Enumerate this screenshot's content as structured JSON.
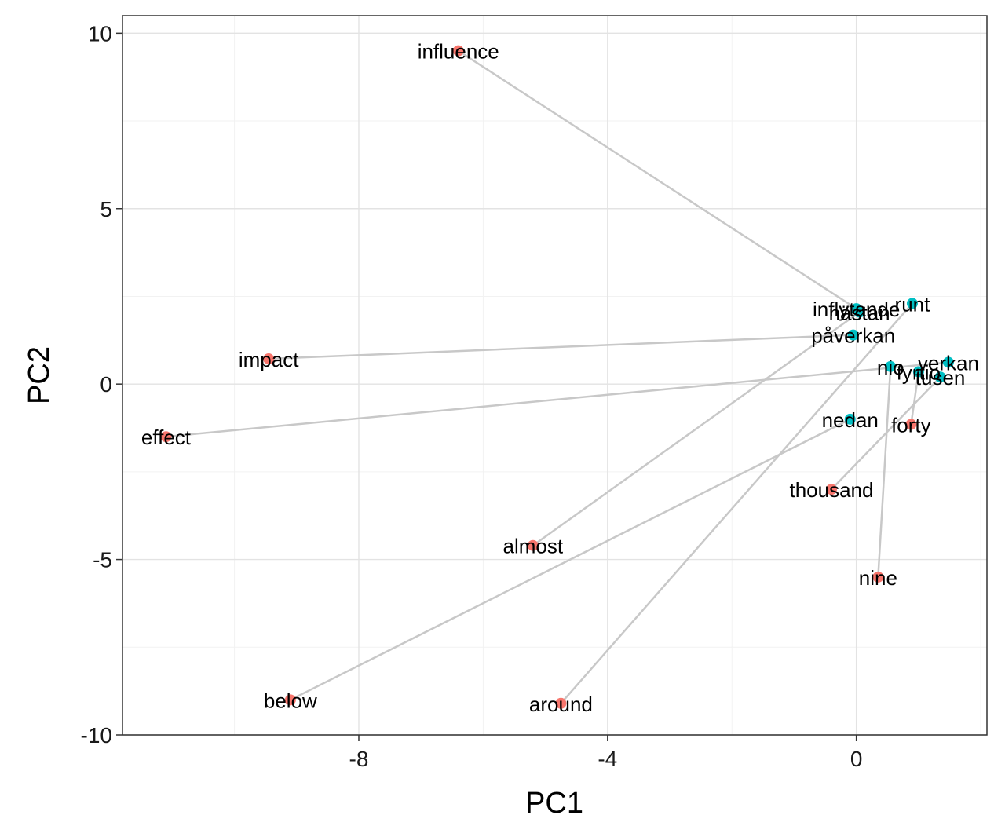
{
  "chart_data": {
    "type": "scatter",
    "title": "",
    "xlabel": "PC1",
    "ylabel": "PC2",
    "xlim": [
      -11.8,
      2.1
    ],
    "ylim": [
      -10,
      10.5
    ],
    "x_ticks": [
      -8,
      -4,
      0
    ],
    "x_tick_labels": [
      "-8",
      "-4",
      "0"
    ],
    "y_ticks": [
      -10,
      -5,
      0,
      5,
      10
    ],
    "y_tick_labels": [
      "-10",
      "-5",
      "0",
      "5",
      "10"
    ],
    "grid": true,
    "legend": "none",
    "colors": {
      "english": "#f8766d",
      "swedish": "#00bfc4",
      "link": "#c8c8c8"
    },
    "english_points": [
      {
        "label": "influence",
        "x": -6.4,
        "y": 9.5
      },
      {
        "label": "impact",
        "x": -9.45,
        "y": 0.72
      },
      {
        "label": "effect",
        "x": -11.1,
        "y": -1.5
      },
      {
        "label": "almost",
        "x": -5.2,
        "y": -4.6
      },
      {
        "label": "below",
        "x": -9.1,
        "y": -9.0
      },
      {
        "label": "around",
        "x": -4.75,
        "y": -9.1
      },
      {
        "label": "thousand",
        "x": -0.4,
        "y": -3.0
      },
      {
        "label": "nine",
        "x": 0.35,
        "y": -5.5
      },
      {
        "label": "forty",
        "x": 0.88,
        "y": -1.15
      }
    ],
    "swedish_points": [
      {
        "label": "inflytande",
        "x": 0.0,
        "y": 2.15
      },
      {
        "label": "nästan",
        "x": 0.05,
        "y": 2.05
      },
      {
        "label": "runt",
        "x": 0.9,
        "y": 2.3
      },
      {
        "label": "påverkan",
        "x": -0.05,
        "y": 1.4
      },
      {
        "label": "verkan",
        "x": 1.48,
        "y": 0.62
      },
      {
        "label": "nio",
        "x": 0.55,
        "y": 0.5
      },
      {
        "label": "fyrtio",
        "x": 1.0,
        "y": 0.35
      },
      {
        "label": "tusen",
        "x": 1.35,
        "y": 0.2
      },
      {
        "label": "nedan",
        "x": -0.1,
        "y": -1.0
      }
    ],
    "links": [
      {
        "from": "influence",
        "to": "inflytande"
      },
      {
        "from": "impact",
        "to": "påverkan"
      },
      {
        "from": "effect",
        "to": "verkan"
      },
      {
        "from": "almost",
        "to": "nästan"
      },
      {
        "from": "below",
        "to": "nedan"
      },
      {
        "from": "around",
        "to": "runt"
      },
      {
        "from": "thousand",
        "to": "tusen"
      },
      {
        "from": "nine",
        "to": "nio"
      },
      {
        "from": "forty",
        "to": "fyrtio"
      }
    ]
  }
}
